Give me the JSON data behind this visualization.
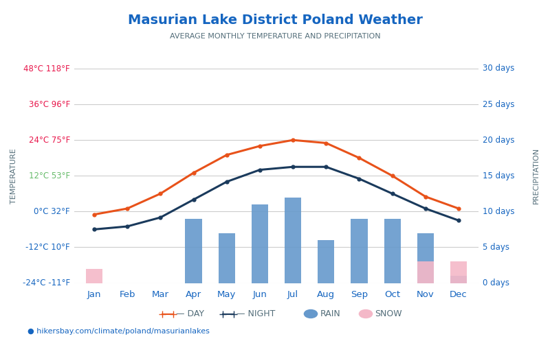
{
  "title": "Masurian Lake District Poland Weather",
  "subtitle": "AVERAGE MONTHLY TEMPERATURE AND PRECIPITATION",
  "months": [
    "Jan",
    "Feb",
    "Mar",
    "Apr",
    "May",
    "Jun",
    "Jul",
    "Aug",
    "Sep",
    "Oct",
    "Nov",
    "Dec"
  ],
  "day_temps": [
    -1,
    1,
    6,
    13,
    19,
    22,
    24,
    23,
    18,
    12,
    5,
    1
  ],
  "night_temps": [
    -6,
    -5,
    -2,
    4,
    10,
    14,
    15,
    15,
    11,
    6,
    1,
    -3
  ],
  "rain_days": [
    0,
    0,
    0,
    9,
    7,
    11,
    12,
    6,
    9,
    9,
    7,
    1
  ],
  "snow_days": [
    2,
    0,
    0,
    0,
    0,
    0,
    0,
    0,
    0,
    0,
    3,
    3
  ],
  "temp_yticks_c": [
    48,
    36,
    24,
    12,
    0,
    -12,
    -24
  ],
  "temp_yticks_f": [
    118,
    96,
    75,
    53,
    32,
    10,
    -11
  ],
  "temp_ytick_colors": [
    "#e8174b",
    "#e8174b",
    "#e8174b",
    "#66bb6a",
    "#1565c0",
    "#1565c0",
    "#1565c0"
  ],
  "precip_yticks": [
    30,
    25,
    20,
    15,
    10,
    5,
    0
  ],
  "precip_ylabel": "PRECIPITATION",
  "temp_ylabel": "TEMPERATURE",
  "day_color": "#e8521a",
  "night_color": "#1a3a5c",
  "rain_color": "#6699cc",
  "snow_color": "#f4b8c8",
  "title_color": "#1565c0",
  "subtitle_color": "#546e7a",
  "axis_label_color": "#546e7a",
  "left_tick_color_warm": "#e8174b",
  "left_tick_color_mid": "#66bb6a",
  "left_tick_color_cold": "#1565c0",
  "right_tick_color": "#1565c0",
  "grid_color": "#cccccc",
  "footer": "hikersbay.com/climate/poland/masurianlakes",
  "footer_color": "#1565c0",
  "background_color": "#ffffff",
  "bar_width": 0.5
}
